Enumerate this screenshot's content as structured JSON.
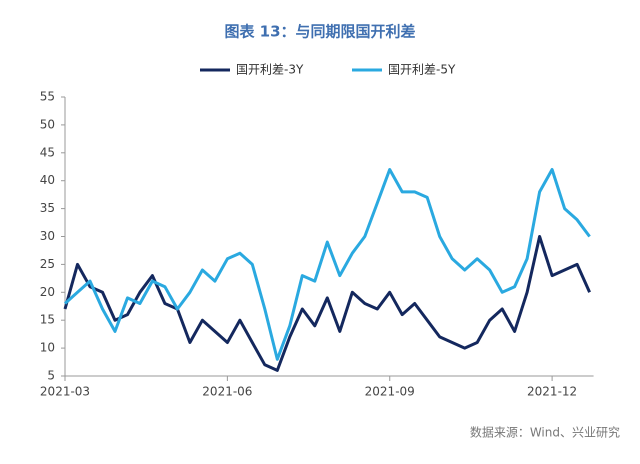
{
  "chart_data": {
    "type": "line",
    "title": "图表 13：与同期限国开利差",
    "source": "数据来源：Wind、兴业研究",
    "categories": [
      "2021-03",
      null,
      null,
      null,
      null,
      null,
      null,
      null,
      null,
      null,
      null,
      null,
      null,
      "2021-06",
      null,
      null,
      null,
      null,
      null,
      null,
      null,
      null,
      null,
      null,
      null,
      null,
      "2021-09",
      null,
      null,
      null,
      null,
      null,
      null,
      null,
      null,
      null,
      null,
      null,
      null,
      "2021-12",
      null,
      null,
      null
    ],
    "series": [
      {
        "name": "国开利差-3Y",
        "color": "#14285e",
        "values": [
          17,
          25,
          21,
          20,
          15,
          16,
          20,
          23,
          18,
          17,
          11,
          15,
          13,
          11,
          15,
          11,
          7,
          6,
          12,
          17,
          14,
          19,
          13,
          20,
          18,
          17,
          20,
          16,
          18,
          15,
          12,
          11,
          10,
          11,
          15,
          17,
          13,
          20,
          30,
          23,
          24,
          25,
          20
        ]
      },
      {
        "name": "国开利差-5Y",
        "color": "#2aa9e0",
        "values": [
          18,
          20,
          22,
          17,
          13,
          19,
          18,
          22,
          21,
          17,
          20,
          24,
          22,
          26,
          27,
          25,
          17,
          8,
          14,
          23,
          22,
          29,
          23,
          27,
          30,
          36,
          42,
          38,
          38,
          37,
          30,
          26,
          24,
          26,
          24,
          20,
          21,
          26,
          38,
          42,
          35,
          33,
          30
        ]
      }
    ],
    "ylim": [
      5,
      55
    ],
    "yticks": [
      5,
      10,
      15,
      20,
      25,
      30,
      35,
      40,
      45,
      50,
      55
    ],
    "legend": "top"
  }
}
